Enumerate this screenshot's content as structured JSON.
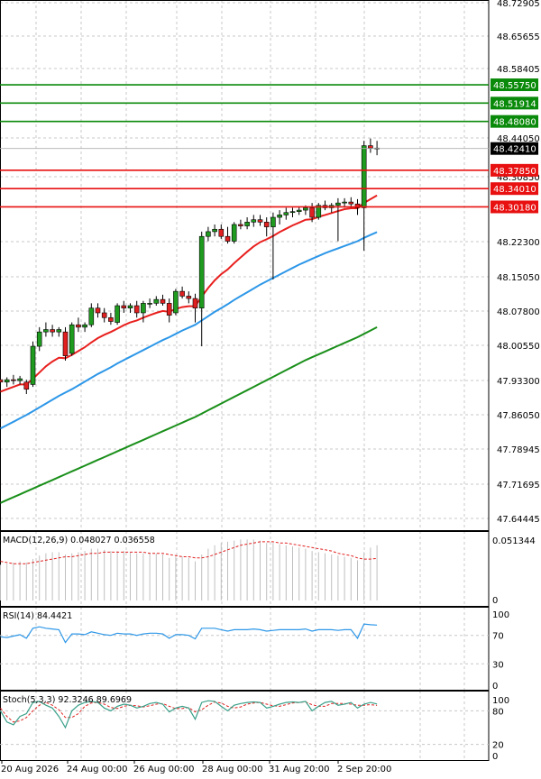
{
  "chart_data": [
    {
      "type": "candlestick",
      "title": "",
      "price_axis_labels": [
        "48.72905",
        "48.65655",
        "48.58405",
        "48.44050",
        "48.30850",
        "48.22300",
        "48.15050",
        "48.07800",
        "48.00550",
        "47.93300",
        "47.86050",
        "47.78945",
        "47.71695",
        "47.64445"
      ],
      "time_axis_labels": [
        "20 Aug 2026",
        "24 Aug 00:00",
        "26 Aug 00:00",
        "28 Aug 00:00",
        "31 Aug 20:00",
        "2 Sep 20:00"
      ],
      "ylim": [
        47.625,
        48.735
      ],
      "current_price": "48.42410",
      "resistance_levels": [
        {
          "value": 48.5575,
          "label": "48.55750",
          "color": "#0a8a0a"
        },
        {
          "value": 48.51914,
          "label": "48.51914",
          "color": "#0a8a0a"
        },
        {
          "value": 48.4808,
          "label": "48.48080",
          "color": "#0a8a0a"
        }
      ],
      "support_levels": [
        {
          "value": 48.3785,
          "label": "48.37850",
          "color": "#e81010"
        },
        {
          "value": 48.3401,
          "label": "48.34010",
          "color": "#e81010"
        },
        {
          "value": 48.3018,
          "label": "48.30180",
          "color": "#e81010"
        }
      ],
      "candles": [
        [
          47.94,
          47.95,
          47.92,
          47.935
        ],
        [
          47.935,
          47.945,
          47.925,
          47.94
        ],
        [
          47.94,
          47.95,
          47.93,
          47.938
        ],
        [
          47.938,
          47.948,
          47.93,
          47.942
        ],
        [
          47.935,
          47.94,
          47.91,
          47.92
        ],
        [
          47.93,
          48.02,
          47.925,
          48.01
        ],
        [
          48.01,
          48.05,
          48.0,
          48.04
        ],
        [
          48.04,
          48.06,
          48.03,
          48.045
        ],
        [
          48.045,
          48.055,
          48.03,
          48.04
        ],
        [
          48.04,
          48.05,
          48.03,
          48.045
        ],
        [
          48.04,
          48.05,
          47.98,
          47.99
        ],
        [
          47.995,
          48.06,
          47.99,
          48.055
        ],
        [
          48.055,
          48.07,
          48.04,
          48.05
        ],
        [
          48.05,
          48.06,
          48.04,
          48.055
        ],
        [
          48.055,
          48.1,
          48.05,
          48.09
        ],
        [
          48.09,
          48.1,
          48.07,
          48.08
        ],
        [
          48.08,
          48.09,
          48.06,
          48.07
        ],
        [
          48.07,
          48.08,
          48.055,
          48.062
        ],
        [
          48.06,
          48.1,
          48.055,
          48.095
        ],
        [
          48.095,
          48.105,
          48.08,
          48.09
        ],
        [
          48.09,
          48.1,
          48.08,
          48.095
        ],
        [
          48.095,
          48.105,
          48.07,
          48.08
        ],
        [
          48.08,
          48.105,
          48.06,
          48.1
        ],
        [
          48.1,
          48.11,
          48.09,
          48.1
        ],
        [
          48.1,
          48.115,
          48.095,
          48.108
        ],
        [
          48.108,
          48.118,
          48.095,
          48.1
        ],
        [
          48.1,
          48.11,
          48.06,
          48.075
        ],
        [
          48.08,
          48.13,
          48.075,
          48.125
        ],
        [
          48.125,
          48.135,
          48.11,
          48.115
        ],
        [
          48.115,
          48.125,
          48.1,
          48.11
        ],
        [
          48.11,
          48.12,
          48.06,
          48.09
        ],
        [
          48.09,
          48.25,
          48.01,
          48.24
        ],
        [
          48.24,
          48.26,
          48.23,
          48.25
        ],
        [
          48.25,
          48.265,
          48.24,
          48.255
        ],
        [
          48.255,
          48.265,
          48.235,
          48.24
        ],
        [
          48.24,
          48.26,
          48.225,
          48.23
        ],
        [
          48.23,
          48.27,
          48.225,
          48.265
        ],
        [
          48.265,
          48.275,
          48.255,
          48.262
        ],
        [
          48.262,
          48.28,
          48.255,
          48.27
        ],
        [
          48.27,
          48.285,
          48.26,
          48.275
        ],
        [
          48.275,
          48.285,
          48.262,
          48.27
        ],
        [
          48.27,
          48.28,
          48.24,
          48.26
        ],
        [
          48.26,
          48.29,
          48.15,
          48.28
        ],
        [
          48.28,
          48.295,
          48.265,
          48.285
        ],
        [
          48.285,
          48.3,
          48.275,
          48.29
        ],
        [
          48.29,
          48.3,
          48.28,
          48.292
        ],
        [
          48.292,
          48.302,
          48.285,
          48.295
        ],
        [
          48.295,
          48.305,
          48.285,
          48.3
        ],
        [
          48.3,
          48.31,
          48.27,
          48.28
        ],
        [
          48.28,
          48.31,
          48.275,
          48.305
        ],
        [
          48.305,
          48.315,
          48.295,
          48.3
        ],
        [
          48.3,
          48.31,
          48.29,
          48.305
        ],
        [
          48.305,
          48.32,
          48.23,
          48.31
        ],
        [
          48.31,
          48.32,
          48.3,
          48.312
        ],
        [
          48.312,
          48.322,
          48.3,
          48.308
        ],
        [
          48.308,
          48.318,
          48.285,
          48.3
        ],
        [
          48.3,
          48.44,
          48.21,
          48.43
        ],
        [
          48.43,
          48.445,
          48.415,
          48.425
        ],
        [
          48.425,
          48.44,
          48.41,
          48.424
        ]
      ],
      "moving_averages": {
        "red": [
          47.915,
          47.92,
          47.925,
          47.93,
          47.93,
          47.942,
          47.955,
          47.968,
          47.978,
          47.986,
          47.985,
          47.992,
          48.0,
          48.008,
          48.018,
          48.027,
          48.034,
          48.04,
          48.047,
          48.054,
          48.06,
          48.064,
          48.07,
          48.075,
          48.08,
          48.084,
          48.082,
          48.088,
          48.092,
          48.094,
          48.094,
          48.114,
          48.132,
          48.148,
          48.161,
          48.171,
          48.184,
          48.196,
          48.208,
          48.219,
          48.228,
          48.234,
          48.241,
          48.249,
          48.256,
          48.263,
          48.269,
          48.275,
          48.276,
          48.281,
          48.285,
          48.289,
          48.293,
          48.297,
          48.299,
          48.299,
          48.31,
          48.318,
          48.326
        ],
        "blue": [
          47.838,
          47.845,
          47.852,
          47.859,
          47.866,
          47.874,
          47.882,
          47.89,
          47.898,
          47.906,
          47.913,
          47.92,
          47.928,
          47.936,
          47.944,
          47.952,
          47.959,
          47.966,
          47.974,
          47.981,
          47.988,
          47.995,
          48.002,
          48.009,
          48.016,
          48.023,
          48.029,
          48.036,
          48.043,
          48.049,
          48.055,
          48.064,
          48.073,
          48.082,
          48.09,
          48.098,
          48.107,
          48.115,
          48.123,
          48.131,
          48.139,
          48.146,
          48.153,
          48.16,
          48.167,
          48.174,
          48.181,
          48.187,
          48.193,
          48.199,
          48.205,
          48.21,
          48.215,
          48.22,
          48.225,
          48.23,
          48.237,
          48.243,
          48.249
        ],
        "green": [
          47.682,
          47.688,
          47.694,
          47.7,
          47.706,
          47.712,
          47.718,
          47.724,
          47.73,
          47.736,
          47.742,
          47.748,
          47.754,
          47.76,
          47.766,
          47.772,
          47.778,
          47.784,
          47.79,
          47.796,
          47.802,
          47.808,
          47.814,
          47.82,
          47.826,
          47.832,
          47.838,
          47.844,
          47.85,
          47.856,
          47.862,
          47.869,
          47.876,
          47.883,
          47.89,
          47.897,
          47.904,
          47.911,
          47.918,
          47.925,
          47.932,
          47.939,
          47.946,
          47.953,
          47.96,
          47.967,
          47.974,
          47.981,
          47.987,
          47.993,
          47.999,
          48.005,
          48.011,
          48.017,
          48.023,
          48.029,
          48.036,
          48.043,
          48.05
        ]
      }
    },
    {
      "type": "bar",
      "title": "MACD(12,26,9) 0.048027 0.036558",
      "axis_labels": [
        "0.051344",
        "0"
      ],
      "ylim": [
        0,
        0.0572
      ],
      "values": [
        0.031,
        0.032,
        0.033,
        0.034,
        0.033,
        0.036,
        0.039,
        0.041,
        0.042,
        0.042,
        0.04,
        0.041,
        0.042,
        0.043,
        0.045,
        0.045,
        0.044,
        0.043,
        0.043,
        0.043,
        0.042,
        0.041,
        0.041,
        0.041,
        0.041,
        0.04,
        0.037,
        0.038,
        0.038,
        0.037,
        0.034,
        0.04,
        0.045,
        0.048,
        0.05,
        0.051,
        0.052,
        0.053,
        0.053,
        0.053,
        0.052,
        0.05,
        0.05,
        0.049,
        0.048,
        0.047,
        0.046,
        0.045,
        0.043,
        0.042,
        0.041,
        0.04,
        0.039,
        0.038,
        0.037,
        0.035,
        0.042,
        0.046,
        0.048
      ],
      "signal": [
        0.034,
        0.033,
        0.032,
        0.032,
        0.032,
        0.033,
        0.034,
        0.035,
        0.036,
        0.037,
        0.038,
        0.038,
        0.039,
        0.04,
        0.041,
        0.041,
        0.042,
        0.042,
        0.042,
        0.042,
        0.042,
        0.042,
        0.042,
        0.041,
        0.041,
        0.041,
        0.04,
        0.039,
        0.038,
        0.038,
        0.037,
        0.037,
        0.038,
        0.04,
        0.042,
        0.044,
        0.046,
        0.048,
        0.049,
        0.05,
        0.051,
        0.051,
        0.051,
        0.05,
        0.05,
        0.049,
        0.048,
        0.047,
        0.046,
        0.045,
        0.044,
        0.043,
        0.041,
        0.04,
        0.039,
        0.037,
        0.036,
        0.036,
        0.0366
      ]
    },
    {
      "type": "line",
      "title": "RSI(14) 84.4421",
      "axis_labels": [
        "100",
        "70",
        "30",
        "0"
      ],
      "ylim": [
        0,
        100
      ],
      "values": [
        68,
        67,
        69,
        71,
        66,
        80,
        82,
        80,
        79,
        78,
        60,
        72,
        72,
        71,
        75,
        73,
        71,
        70,
        73,
        72,
        72,
        70,
        72,
        73,
        73,
        72,
        66,
        71,
        71,
        70,
        65,
        80,
        80,
        80,
        78,
        76,
        78,
        78,
        78,
        79,
        78,
        76,
        77,
        78,
        78,
        78,
        78,
        79,
        76,
        78,
        78,
        78,
        77,
        78,
        78,
        66,
        86,
        85,
        84.4421
      ]
    },
    {
      "type": "line",
      "title": "Stoch(5,3,3) 92.3246 89.6969",
      "axis_labels": [
        "100",
        "80",
        "20",
        "0"
      ],
      "ylim": [
        0,
        100
      ],
      "k": [
        80,
        60,
        55,
        70,
        75,
        95,
        97,
        90,
        85,
        70,
        50,
        80,
        90,
        95,
        97,
        95,
        85,
        80,
        88,
        92,
        90,
        85,
        88,
        93,
        95,
        92,
        78,
        85,
        88,
        85,
        65,
        95,
        98,
        97,
        88,
        80,
        90,
        93,
        95,
        96,
        95,
        85,
        88,
        92,
        95,
        96,
        95,
        97,
        80,
        88,
        95,
        97,
        90,
        92,
        95,
        85,
        92,
        95,
        92.3246
      ],
      "d": [
        85,
        70,
        60,
        62,
        68,
        80,
        90,
        95,
        90,
        82,
        68,
        68,
        75,
        88,
        94,
        95,
        92,
        86,
        84,
        88,
        90,
        89,
        87,
        89,
        92,
        93,
        88,
        84,
        84,
        86,
        78,
        82,
        90,
        96,
        94,
        88,
        85,
        87,
        92,
        94,
        95,
        92,
        89,
        88,
        91,
        94,
        95,
        96,
        91,
        88,
        88,
        93,
        93,
        93,
        92,
        90,
        90,
        91,
        89.6969
      ]
    }
  ]
}
